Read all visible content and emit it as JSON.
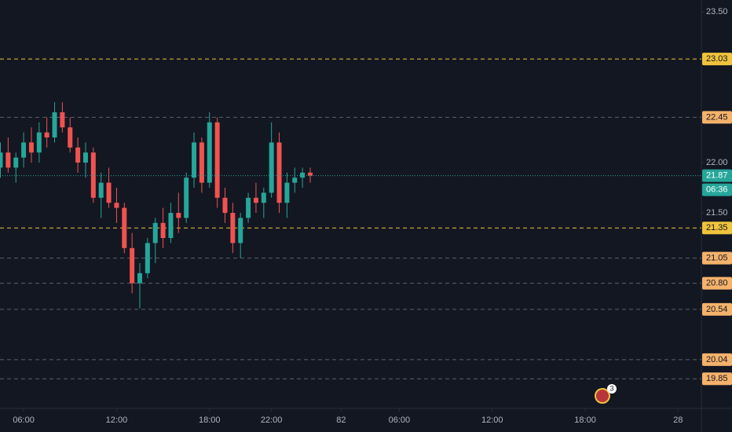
{
  "chart_data": {
    "type": "candlestick",
    "x": [
      -6,
      -4,
      -2,
      0,
      2,
      4,
      6,
      8,
      10,
      12,
      14,
      16,
      18,
      20,
      22,
      24,
      26,
      28,
      30,
      32,
      34,
      36,
      38,
      40,
      42,
      44,
      46,
      48,
      50,
      52,
      54,
      56,
      58,
      60,
      62,
      64,
      66,
      68,
      70,
      72,
      74
    ],
    "open": [
      21.95,
      22.1,
      21.95,
      22.05,
      22.2,
      22.1,
      22.3,
      22.25,
      22.5,
      22.35,
      22.15,
      22.0,
      22.1,
      21.65,
      21.8,
      21.6,
      21.55,
      21.15,
      20.8,
      20.9,
      21.2,
      21.4,
      21.25,
      21.5,
      21.45,
      21.85,
      22.2,
      21.8,
      22.4,
      21.65,
      21.5,
      21.2,
      21.45,
      21.65,
      21.6,
      21.7,
      22.2,
      21.6,
      21.8,
      21.85,
      21.9
    ],
    "high": [
      22.2,
      22.25,
      22.1,
      22.3,
      22.35,
      22.4,
      22.45,
      22.6,
      22.6,
      22.45,
      22.25,
      22.2,
      22.15,
      21.9,
      21.95,
      21.75,
      21.6,
      21.3,
      21.0,
      21.25,
      21.45,
      21.55,
      21.6,
      21.7,
      21.9,
      22.3,
      22.25,
      22.5,
      22.45,
      21.75,
      21.6,
      21.5,
      21.7,
      21.8,
      21.75,
      22.4,
      22.3,
      21.9,
      21.95,
      21.95,
      21.95
    ],
    "low": [
      21.85,
      21.9,
      21.8,
      21.95,
      22.0,
      22.0,
      22.15,
      22.2,
      22.3,
      22.1,
      21.9,
      21.85,
      21.6,
      21.45,
      21.55,
      21.4,
      21.1,
      20.7,
      20.55,
      20.85,
      21.0,
      21.15,
      21.2,
      21.3,
      21.4,
      21.75,
      21.7,
      21.75,
      21.55,
      21.4,
      21.1,
      21.05,
      21.4,
      21.5,
      21.45,
      21.65,
      21.5,
      21.45,
      21.7,
      21.75,
      21.8
    ],
    "close": [
      22.1,
      21.95,
      22.05,
      22.2,
      22.1,
      22.3,
      22.25,
      22.5,
      22.35,
      22.15,
      22.0,
      22.1,
      21.65,
      21.8,
      21.6,
      21.55,
      21.15,
      20.8,
      20.9,
      21.2,
      21.4,
      21.25,
      21.5,
      21.45,
      21.85,
      22.2,
      21.8,
      22.4,
      21.65,
      21.5,
      21.2,
      21.45,
      21.65,
      21.6,
      21.7,
      22.2,
      21.6,
      21.8,
      21.85,
      21.9,
      21.87
    ],
    "up_color": "#26a69a",
    "down_color": "#ef5350",
    "xlim": [
      -6.1,
      175
    ],
    "ylim": [
      19.555,
      23.617
    ],
    "xticks": [
      {
        "value": 0,
        "label": "06:00"
      },
      {
        "value": 24,
        "label": "12:00"
      },
      {
        "value": 48,
        "label": "18:00"
      },
      {
        "value": 64,
        "label": "22:00"
      },
      82,
      {
        "value": 97,
        "label": "06:00"
      },
      {
        "value": 121,
        "label": "12:00"
      },
      {
        "value": 145,
        "label": "18:00"
      },
      {
        "value": 169,
        "label": "28"
      }
    ],
    "yticks": [
      {
        "value": 23.5,
        "label": "23.50"
      },
      {
        "value": 22,
        "label": "22.00"
      },
      {
        "value": 21.5,
        "label": "21.50"
      }
    ],
    "levels": [
      {
        "price": 23.03,
        "color": "#f0c33c",
        "major": true
      },
      {
        "price": 22.45,
        "color": "#f5b26b",
        "major": false
      },
      {
        "price": 21.35,
        "color": "#f0c33c",
        "major": true
      },
      {
        "price": 21.05,
        "color": "#f5b26b",
        "major": false
      },
      {
        "price": {
          "value": 20.8,
          "label": "20.80"
        },
        "color": "#f5b26b",
        "major": false
      },
      {
        "price": 20.54,
        "color": "#f5b26b",
        "major": false
      },
      {
        "price": 20.04,
        "color": "#f5b26b",
        "major": false
      },
      {
        "price": 19.85,
        "color": "#f5b26b",
        "major": false
      }
    ],
    "last_price": 21.87,
    "countdown": "06:36",
    "last_color": "#26a69a",
    "events_badge": "3"
  }
}
